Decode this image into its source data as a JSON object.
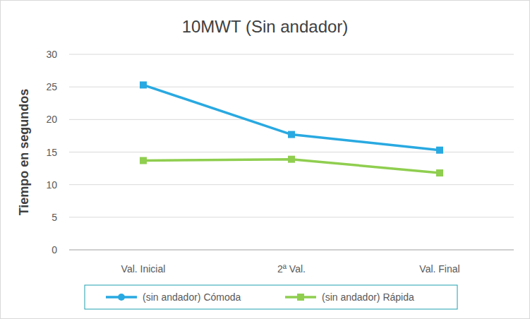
{
  "chart_data": {
    "type": "line",
    "title": "10MWT (Sin andador)",
    "y_label": "Tiempo en segundos",
    "categories": [
      "Val. Inicial",
      "2ª Val.",
      "Val. Final"
    ],
    "series": [
      {
        "name": "(sin andador) Cómoda",
        "color": "#29a9e1",
        "marker": "square",
        "values": [
          25.3,
          17.7,
          15.3
        ]
      },
      {
        "name": "(sin andador) Rápida",
        "color": "#8fce4f",
        "marker": "square",
        "values": [
          13.7,
          13.9,
          11.8
        ]
      }
    ],
    "ylim": [
      0,
      30
    ],
    "yticks": [
      0,
      5,
      10,
      15,
      20,
      25,
      30
    ],
    "grid": true,
    "legend": "bottom"
  }
}
